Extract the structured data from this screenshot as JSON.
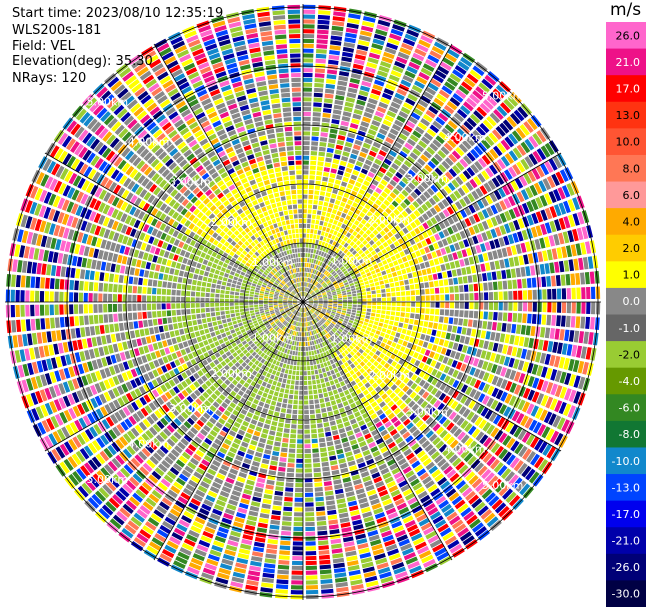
{
  "header": {
    "start_time": "Start time: 2023/08/10 12:35:19",
    "station": "WLS200s-181",
    "field": "Field: VEL",
    "elevation": "Elevation(deg): 35.30",
    "nrays": "NRays: 120"
  },
  "colorbar": {
    "unit": "m/s",
    "labels": [
      "26.0",
      "21.0",
      "17.0",
      "13.0",
      "10.0",
      "8.0",
      "6.0",
      "4.0",
      "2.0",
      "1.0",
      "0.0",
      "-1.0",
      "-2.0",
      "-4.0",
      "-6.0",
      "-8.0",
      "-10.0",
      "-13.0",
      "-17.0",
      "-21.0",
      "-26.0",
      "-30.0"
    ],
    "colors": [
      "#ff66cc",
      "#ee1188",
      "#ff0000",
      "#ff3311",
      "#ff5533",
      "#ff7755",
      "#ff9999",
      "#ffaa00",
      "#ffcc00",
      "#ffff00",
      "#888888",
      "#666666",
      "#99cc33",
      "#669900",
      "#338822",
      "#117733",
      "#1188cc",
      "#0044ff",
      "#0000ee",
      "#0000aa",
      "#000077",
      "#000044"
    ]
  },
  "chart_data": {
    "type": "heatmap",
    "title": "",
    "projection": "polar PPI",
    "field": "VEL",
    "units": "m/s",
    "n_rays": 120,
    "range_rings_km": [
      1.0,
      2.0,
      3.0,
      4.0,
      5.0
    ],
    "range_ring_labels": [
      {
        "ring": "1.00km",
        "positions": [
          "upper-left",
          "upper-right",
          "lower-left",
          "lower-right"
        ]
      },
      {
        "ring": "2.00km",
        "positions": [
          "upper-left",
          "upper-right",
          "lower-left",
          "lower-right"
        ]
      },
      {
        "ring": "3.00km",
        "positions": [
          "upper-left",
          "upper-right",
          "lower-left",
          "lower-right"
        ]
      },
      {
        "ring": "4.00km",
        "positions": [
          "upper-left",
          "upper-right",
          "lower-left",
          "lower-right"
        ]
      },
      {
        "ring": "5.00km",
        "positions": [
          "upper-left",
          "upper-right",
          "lower-left",
          "lower-right"
        ]
      }
    ],
    "ring_label_text": [
      "1.00km",
      "2.00km",
      "3.00km",
      "4.00km",
      "5.00km"
    ],
    "spoke_angles_deg": [
      0,
      30,
      60,
      90,
      120,
      150,
      180,
      210,
      240,
      270,
      300,
      330
    ],
    "max_range_km": 5.0,
    "pattern_description_values": {
      "near_field_velocity_north_east": 2.0,
      "near_field_velocity_south_west": -2.0,
      "far_field": "noise"
    }
  }
}
